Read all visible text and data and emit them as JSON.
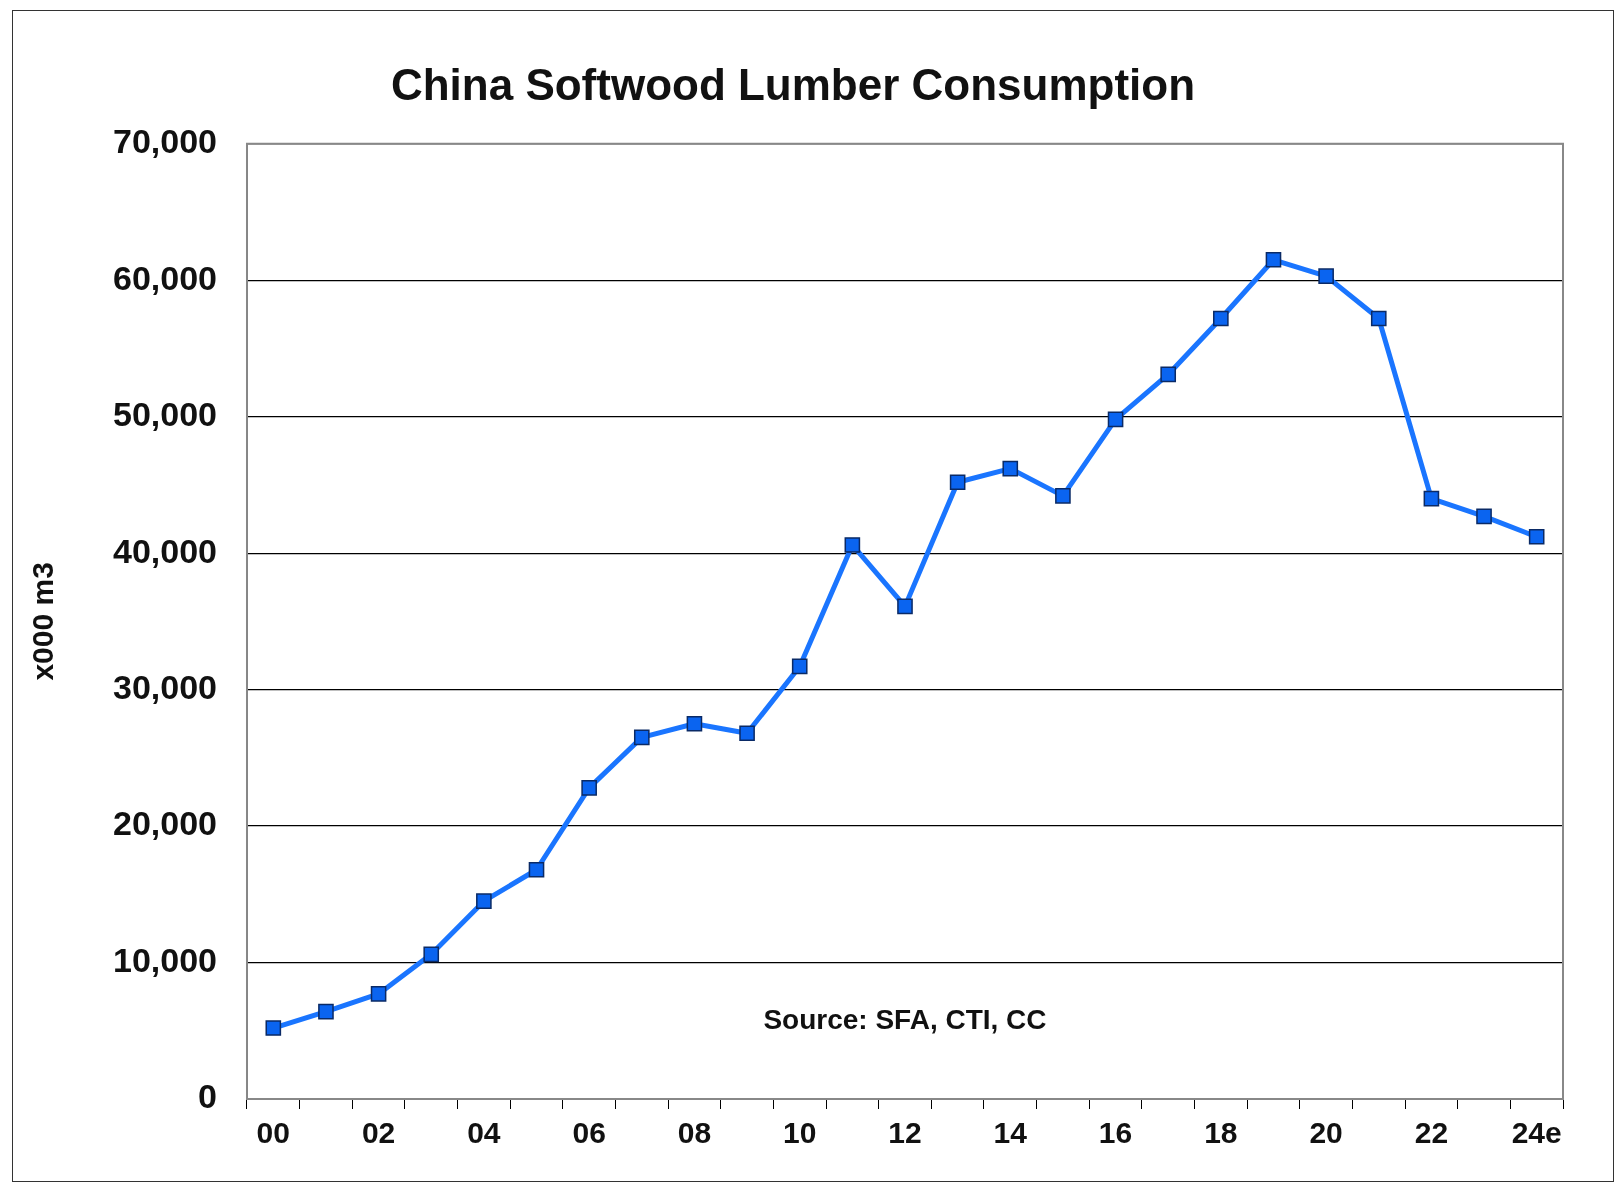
{
  "chart_data": {
    "type": "line",
    "title": "China Softwood Lumber Consumption",
    "ylabel": "x000 m3",
    "categories": [
      "00",
      null,
      "02",
      null,
      "04",
      null,
      "06",
      null,
      "08",
      null,
      "10",
      null,
      "12",
      null,
      "14",
      null,
      "16",
      null,
      "18",
      null,
      "20",
      null,
      "22",
      null,
      "24e"
    ],
    "series": [
      {
        "color": "#1a75ff",
        "values": [
          5200,
          6400,
          7700,
          10600,
          14500,
          16800,
          22800,
          26500,
          27500,
          26800,
          31700,
          40600,
          36100,
          45200,
          46200,
          44200,
          49800,
          53100,
          57200,
          61500,
          60300,
          57200,
          44000,
          42700,
          41200
        ]
      }
    ],
    "ylim": [
      0,
      70000
    ],
    "yticks": [
      {
        "value": 0,
        "label": "0"
      },
      {
        "value": 10000,
        "label": "10,000"
      },
      {
        "value": 20000,
        "label": "20,000"
      },
      {
        "value": 30000,
        "label": "30,000"
      },
      {
        "value": 40000,
        "label": "40,000"
      },
      {
        "value": 50000,
        "label": "50,000"
      },
      {
        "value": 60000,
        "label": "60,000"
      },
      {
        "value": 70000,
        "label": "70,000"
      }
    ],
    "grid": "y",
    "legend": false,
    "marker": "square",
    "line_style": "solid",
    "annotations": [
      "Source: SFA, CTI, CC"
    ]
  }
}
